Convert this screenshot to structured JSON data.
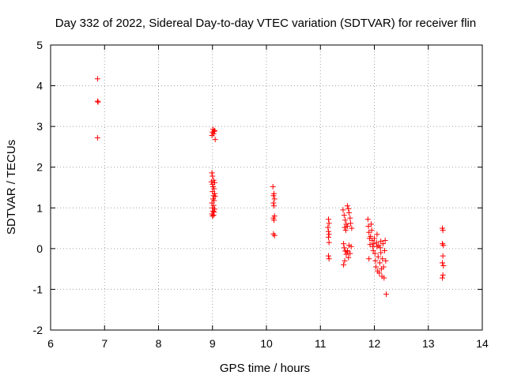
{
  "chart_data": {
    "type": "scatter",
    "title": "Day 332 of 2022, Sidereal Day-to-day VTEC variation (SDTVAR) for receiver flin",
    "xlabel": "GPS time / hours",
    "ylabel": "SDTVAR / TECUs",
    "xlim": [
      6,
      14
    ],
    "ylim": [
      -2,
      5
    ],
    "xticks": [
      6,
      7,
      8,
      9,
      10,
      11,
      12,
      13,
      14
    ],
    "yticks": [
      -2,
      -1,
      0,
      1,
      2,
      3,
      4,
      5
    ],
    "grid": true,
    "marker": "+",
    "color": "#ff0000",
    "series": [
      {
        "name": "SDTVAR",
        "points": [
          [
            6.87,
            4.17
          ],
          [
            6.87,
            3.62
          ],
          [
            6.88,
            3.6
          ],
          [
            6.87,
            2.72
          ],
          [
            8.99,
            2.78
          ],
          [
            9.0,
            2.86
          ],
          [
            9.01,
            2.93
          ],
          [
            9.03,
            2.88
          ],
          [
            9.04,
            2.9
          ],
          [
            9.02,
            2.82
          ],
          [
            9.05,
            2.68
          ],
          [
            8.99,
            1.86
          ],
          [
            9.0,
            1.78
          ],
          [
            8.98,
            1.64
          ],
          [
            9.0,
            1.58
          ],
          [
            9.02,
            1.68
          ],
          [
            9.04,
            1.62
          ],
          [
            9.01,
            1.52
          ],
          [
            9.03,
            1.47
          ],
          [
            9.0,
            1.4
          ],
          [
            9.04,
            1.35
          ],
          [
            9.02,
            1.3
          ],
          [
            9.05,
            1.28
          ],
          [
            9.01,
            1.22
          ],
          [
            9.03,
            1.18
          ],
          [
            8.99,
            1.12
          ],
          [
            9.02,
            1.06
          ],
          [
            9.0,
            1.0
          ],
          [
            9.04,
            0.97
          ],
          [
            9.01,
            0.92
          ],
          [
            9.03,
            0.9
          ],
          [
            8.99,
            0.85
          ],
          [
            9.02,
            0.82
          ],
          [
            9.0,
            0.8
          ],
          [
            10.12,
            1.52
          ],
          [
            10.14,
            1.35
          ],
          [
            10.13,
            1.3
          ],
          [
            10.15,
            1.22
          ],
          [
            10.13,
            1.12
          ],
          [
            10.14,
            1.05
          ],
          [
            10.15,
            0.8
          ],
          [
            10.13,
            0.75
          ],
          [
            10.14,
            0.7
          ],
          [
            10.13,
            0.36
          ],
          [
            10.15,
            0.32
          ],
          [
            11.15,
            0.72
          ],
          [
            11.16,
            0.62
          ],
          [
            11.14,
            0.52
          ],
          [
            11.15,
            0.42
          ],
          [
            11.16,
            0.35
          ],
          [
            11.15,
            0.28
          ],
          [
            11.16,
            0.15
          ],
          [
            11.15,
            -0.18
          ],
          [
            11.16,
            -0.25
          ],
          [
            11.42,
            0.95
          ],
          [
            11.44,
            0.82
          ],
          [
            11.46,
            0.7
          ],
          [
            11.48,
            0.6
          ],
          [
            11.5,
            1.05
          ],
          [
            11.52,
            0.98
          ],
          [
            11.53,
            0.88
          ],
          [
            11.45,
            0.52
          ],
          [
            11.47,
            0.45
          ],
          [
            11.5,
            0.55
          ],
          [
            11.55,
            0.75
          ],
          [
            11.56,
            0.62
          ],
          [
            11.58,
            0.5
          ],
          [
            11.43,
            0.12
          ],
          [
            11.44,
            0.02
          ],
          [
            11.46,
            -0.06
          ],
          [
            11.48,
            -0.14
          ],
          [
            11.5,
            -0.08
          ],
          [
            11.52,
            -0.22
          ],
          [
            11.55,
            -0.12
          ],
          [
            11.57,
            0.05
          ],
          [
            11.45,
            -0.3
          ],
          [
            11.43,
            -0.4
          ],
          [
            11.5,
            -0.05
          ],
          [
            11.53,
            0.08
          ],
          [
            11.88,
            0.72
          ],
          [
            11.89,
            0.55
          ],
          [
            11.9,
            0.4
          ],
          [
            11.91,
            0.25
          ],
          [
            11.92,
            0.1
          ],
          [
            11.93,
            0.3
          ],
          [
            11.95,
            0.45
          ],
          [
            11.96,
            0.2
          ],
          [
            11.97,
            0.05
          ],
          [
            11.98,
            -0.05
          ],
          [
            11.99,
            0.12
          ],
          [
            12.0,
            0.25
          ],
          [
            12.01,
            -0.12
          ],
          [
            12.02,
            -0.3
          ],
          [
            12.03,
            -0.45
          ],
          [
            12.04,
            0.15
          ],
          [
            12.05,
            0.05
          ],
          [
            12.06,
            -0.55
          ],
          [
            12.07,
            -0.2
          ],
          [
            12.08,
            0.08
          ],
          [
            12.09,
            -0.6
          ],
          [
            12.1,
            -0.35
          ],
          [
            12.11,
            0.02
          ],
          [
            12.12,
            -0.1
          ],
          [
            12.13,
            -0.5
          ],
          [
            12.14,
            -0.68
          ],
          [
            12.15,
            -0.25
          ],
          [
            12.16,
            0.12
          ],
          [
            12.17,
            -0.45
          ],
          [
            12.18,
            -0.72
          ],
          [
            12.19,
            -0.05
          ],
          [
            12.2,
            0.2
          ],
          [
            12.21,
            -0.3
          ],
          [
            11.9,
            -0.25
          ],
          [
            11.94,
            0.6
          ],
          [
            12.05,
            0.35
          ],
          [
            12.12,
            0.18
          ],
          [
            12.22,
            -1.12
          ],
          [
            13.26,
            0.5
          ],
          [
            13.27,
            0.45
          ],
          [
            13.26,
            0.12
          ],
          [
            13.28,
            0.08
          ],
          [
            13.27,
            -0.18
          ],
          [
            13.26,
            -0.35
          ],
          [
            13.28,
            -0.42
          ],
          [
            13.27,
            -0.65
          ],
          [
            13.26,
            -0.72
          ]
        ]
      }
    ]
  }
}
